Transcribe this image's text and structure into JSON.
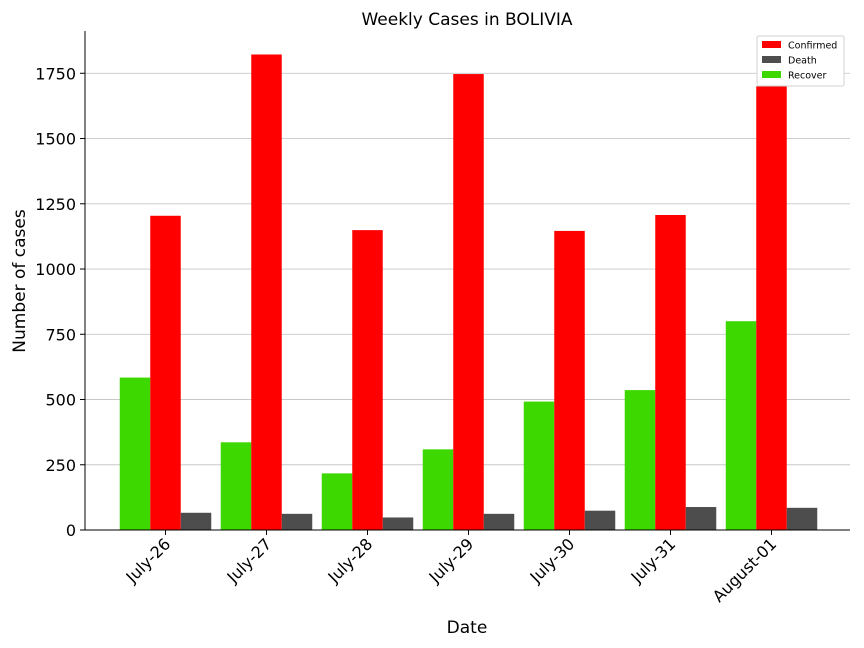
{
  "chart_data": {
    "type": "bar",
    "title": "Weekly Cases in BOLIVIA",
    "xlabel": "Date",
    "ylabel": "Number of cases",
    "categories": [
      "July-26",
      "July-27",
      "July-28",
      "July-29",
      "July-30",
      "July-31",
      "August-01"
    ],
    "series": [
      {
        "name": "Recover",
        "color": "#3dd800",
        "values": [
          584,
          336,
          217,
          309,
          492,
          536,
          800
        ]
      },
      {
        "name": "Confirmed",
        "color": "#ff0000",
        "values": [
          1204,
          1822,
          1149,
          1747,
          1146,
          1207,
          1700
        ]
      },
      {
        "name": "Death",
        "color": "#4d4d4d",
        "values": [
          66,
          62,
          48,
          62,
          74,
          88,
          85
        ]
      }
    ],
    "legend_order": [
      "Confirmed",
      "Death",
      "Recover"
    ],
    "legend_position": "top-right",
    "ylim": [
      0,
      1912
    ],
    "yticks": [
      0,
      250,
      500,
      750,
      1000,
      1250,
      1500,
      1750
    ],
    "yticklabels": [
      "0",
      "250",
      "500",
      "750",
      "1000",
      "1250",
      "1500",
      "1750"
    ],
    "grid": "y"
  }
}
